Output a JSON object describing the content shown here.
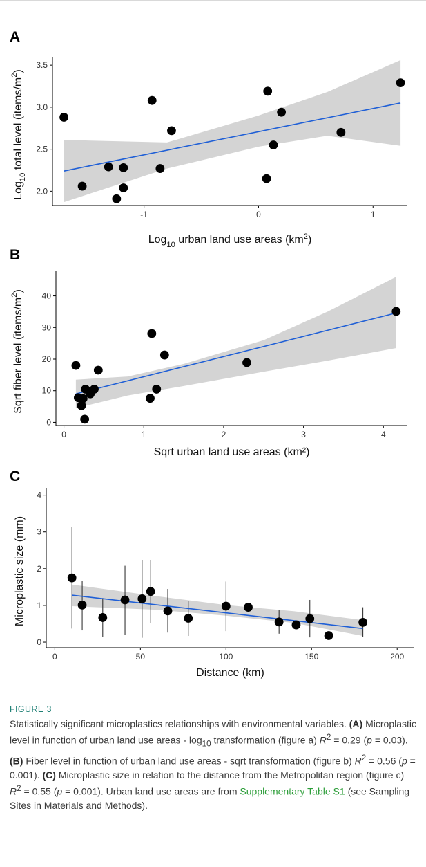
{
  "chart_data": [
    {
      "panel_label": "A",
      "type": "scatter",
      "xlabel": "Log10 urban land use areas (km2)",
      "ylabel": "Log10 total level (items/m2)",
      "xlim": [
        -1.8,
        1.3
      ],
      "ylim": [
        1.83,
        3.6
      ],
      "xticks": [
        -1,
        0,
        1
      ],
      "yticks": [
        2.0,
        2.5,
        3.0,
        3.5
      ],
      "xtick_labels": [
        "-1",
        "0",
        "1"
      ],
      "ytick_labels": [
        "2.0",
        "2.5",
        "3.0",
        "3.5"
      ],
      "grid": false,
      "points": [
        {
          "x": -1.7,
          "y": 2.88
        },
        {
          "x": -1.54,
          "y": 2.06
        },
        {
          "x": -1.31,
          "y": 2.29
        },
        {
          "x": -1.24,
          "y": 1.91
        },
        {
          "x": -1.18,
          "y": 2.04
        },
        {
          "x": -1.18,
          "y": 2.28
        },
        {
          "x": -0.93,
          "y": 3.08
        },
        {
          "x": -0.86,
          "y": 2.27
        },
        {
          "x": -0.76,
          "y": 2.72
        },
        {
          "x": 0.07,
          "y": 2.15
        },
        {
          "x": 0.08,
          "y": 3.19
        },
        {
          "x": 0.13,
          "y": 2.55
        },
        {
          "x": 0.2,
          "y": 2.94
        },
        {
          "x": 0.72,
          "y": 2.7
        },
        {
          "x": 1.24,
          "y": 3.29
        }
      ],
      "fit": {
        "x": [
          -1.7,
          1.24
        ],
        "y": [
          2.24,
          3.05
        ]
      },
      "ci_band": {
        "x": [
          -1.7,
          -0.8,
          0.0,
          0.6,
          1.24
        ],
        "lower": [
          1.87,
          2.27,
          2.53,
          2.66,
          2.54
        ],
        "upper": [
          2.61,
          2.58,
          2.9,
          3.18,
          3.56
        ]
      },
      "point_color": "#000000",
      "line_color": "#1f5fd6",
      "band_color": "#d4d4d4"
    },
    {
      "panel_label": "B",
      "type": "scatter",
      "xlabel": "Sqrt urban land use areas (km²)",
      "ylabel": "Sqrt fiber level (items/m2)",
      "xlim": [
        -0.1,
        4.3
      ],
      "ylim": [
        -1,
        48
      ],
      "xticks": [
        0,
        1,
        2,
        3,
        4
      ],
      "yticks": [
        0,
        10,
        20,
        30,
        40
      ],
      "xtick_labels": [
        "0",
        "1",
        "2",
        "3",
        "4"
      ],
      "ytick_labels": [
        "0",
        "10",
        "20",
        "30",
        "40"
      ],
      "grid": false,
      "points": [
        {
          "x": 0.15,
          "y": 18
        },
        {
          "x": 0.18,
          "y": 7.8
        },
        {
          "x": 0.22,
          "y": 5.3
        },
        {
          "x": 0.24,
          "y": 7.5
        },
        {
          "x": 0.26,
          "y": 1.0
        },
        {
          "x": 0.27,
          "y": 10.5
        },
        {
          "x": 0.33,
          "y": 9.0
        },
        {
          "x": 0.35,
          "y": 10.0
        },
        {
          "x": 0.38,
          "y": 10.5
        },
        {
          "x": 0.43,
          "y": 16.5
        },
        {
          "x": 1.08,
          "y": 7.6
        },
        {
          "x": 1.1,
          "y": 28.1
        },
        {
          "x": 1.16,
          "y": 10.5
        },
        {
          "x": 1.26,
          "y": 21.3
        },
        {
          "x": 2.29,
          "y": 18.9
        },
        {
          "x": 4.16,
          "y": 35.1
        }
      ],
      "fit": {
        "x": [
          0.15,
          4.16
        ],
        "y": [
          9.0,
          34.6
        ]
      },
      "ci_band": {
        "x": [
          0.15,
          0.8,
          1.5,
          2.5,
          3.3,
          4.16
        ],
        "lower": [
          4.5,
          8.5,
          11.5,
          16.0,
          19.5,
          23.5
        ],
        "upper": [
          13.5,
          14.5,
          18.5,
          26.0,
          35.0,
          46.0
        ]
      },
      "point_color": "#000000",
      "line_color": "#1f5fd6",
      "band_color": "#d4d4d4"
    },
    {
      "panel_label": "C",
      "type": "scatter",
      "xlabel": "Distance (km)",
      "ylabel": "Microplastic size (mm)",
      "xlim": [
        -5,
        210
      ],
      "ylim": [
        -0.15,
        4.2
      ],
      "xticks": [
        0,
        50,
        100,
        150,
        200
      ],
      "yticks": [
        0,
        1,
        2,
        3,
        4
      ],
      "xtick_labels": [
        "0",
        "50",
        "100",
        "150",
        "200"
      ],
      "ytick_labels": [
        "0",
        "1",
        "2",
        "3",
        "4"
      ],
      "grid": false,
      "points": [
        {
          "x": 10,
          "y": 1.75,
          "lo": 0.37,
          "hi": 3.13
        },
        {
          "x": 16,
          "y": 1.01,
          "lo": 0.32,
          "hi": 1.67
        },
        {
          "x": 28,
          "y": 0.67,
          "lo": 0.15,
          "hi": 1.2
        },
        {
          "x": 41,
          "y": 1.15,
          "lo": 0.2,
          "hi": 2.08
        },
        {
          "x": 51,
          "y": 1.18,
          "lo": 0.12,
          "hi": 2.23
        },
        {
          "x": 56,
          "y": 1.38,
          "lo": 0.52,
          "hi": 2.23
        },
        {
          "x": 66,
          "y": 0.85,
          "lo": 0.26,
          "hi": 1.45
        },
        {
          "x": 78,
          "y": 0.65,
          "lo": 0.17,
          "hi": 1.13
        },
        {
          "x": 100,
          "y": 0.98,
          "lo": 0.3,
          "hi": 1.65
        },
        {
          "x": 113,
          "y": 0.95,
          "lo": 0.85,
          "hi": 1.05
        },
        {
          "x": 131,
          "y": 0.55,
          "lo": 0.23,
          "hi": 0.87
        },
        {
          "x": 141,
          "y": 0.47,
          "lo": 0.4,
          "hi": 0.55
        },
        {
          "x": 149,
          "y": 0.64,
          "lo": 0.13,
          "hi": 1.15
        },
        {
          "x": 160,
          "y": 0.18,
          "lo": 0.13,
          "hi": 0.24
        },
        {
          "x": 180,
          "y": 0.54,
          "lo": 0.15,
          "hi": 0.95
        }
      ],
      "fit": {
        "x": [
          10,
          180
        ],
        "y": [
          1.28,
          0.37
        ]
      },
      "ci_band": {
        "x": [
          10,
          60,
          100,
          140,
          180
        ],
        "lower": [
          0.98,
          0.88,
          0.72,
          0.52,
          0.17
        ],
        "upper": [
          1.57,
          1.25,
          1.01,
          0.84,
          0.6
        ]
      },
      "point_color": "#000000",
      "line_color": "#1f5fd6",
      "band_color": "#d4d4d4"
    }
  ],
  "caption": {
    "figure_label": "FIGURE 3",
    "text_intro": "Statistically significant microplastics relationships with environmental variables.",
    "a_label": "(A)",
    "a_text": "Microplastic level in function of urban land use areas - log",
    "a_sub": "10",
    "a_text2": "transformation (figure a)",
    "a_stat": "= 0.29 (",
    "a_p": "= 0.03).",
    "b_label": "(B)",
    "b_text": "Fiber level in function of urban land use areas - sqrt transformation (figure b)",
    "b_stat": "= 0.56 (",
    "b_p": "= 0.001).",
    "c_label": "(C)",
    "c_text": "Microplastic size in relation to the distance from the Metropolitan region (figure c)",
    "c_stat": "= 0.55 (",
    "c_p": "= 0.001). Urban land use areas are from",
    "link_text": "Supplementary Table S1",
    "tail_text": "(see Sampling Sites in Materials and Methods)."
  }
}
